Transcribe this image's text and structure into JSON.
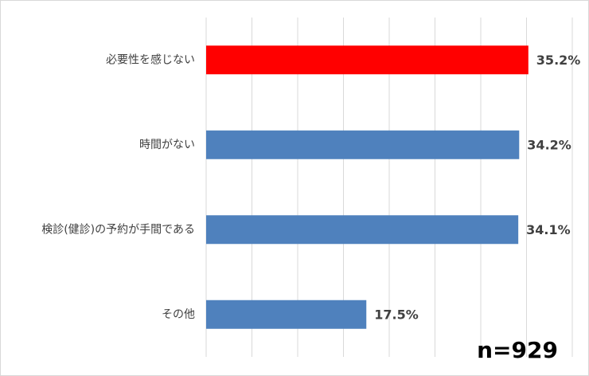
{
  "chart_data": {
    "type": "bar",
    "orientation": "horizontal",
    "categories": [
      "必要性を感じない",
      "時間がない",
      "検診(健診)の予約が手間である",
      "その他"
    ],
    "values": [
      35.2,
      34.2,
      34.1,
      17.5
    ],
    "value_labels": [
      "35.2%",
      "34.2%",
      "34.1%",
      "17.5%"
    ],
    "colors": [
      "#ff0000",
      "#4f81bd",
      "#4f81bd",
      "#4f81bd"
    ],
    "xlim": [
      0,
      40
    ],
    "xticks": [
      0,
      5,
      10,
      15,
      20,
      25,
      30,
      35,
      40
    ],
    "grid": true,
    "annotation": "n=929"
  }
}
